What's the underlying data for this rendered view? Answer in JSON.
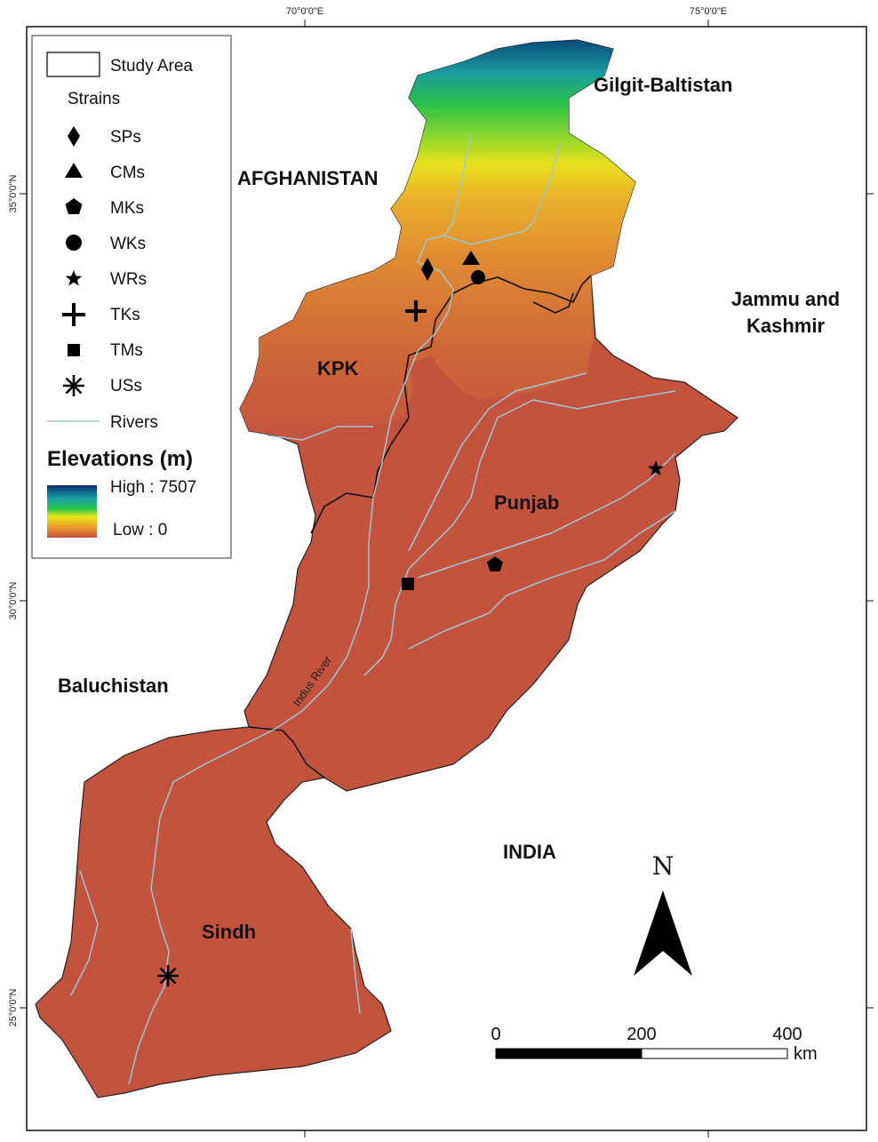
{
  "graticule": {
    "lon_labels": [
      "70°0'0\"E",
      "75°0'0\"E"
    ],
    "lat_labels": [
      "35°0'0\"N",
      "30°0'0\"N",
      "25°0'0\"N"
    ]
  },
  "regions": {
    "gilgit": "Gilgit-Baltistan",
    "afghanistan": "AFGHANISTAN",
    "jammu_1": "Jammu and",
    "jammu_2": "Kashmir",
    "kpk": "KPK",
    "punjab": "Punjab",
    "baluchistan": "Baluchistan",
    "india": "INDIA",
    "sindh": "Sindh"
  },
  "river_label": "Indus River",
  "legend": {
    "study_area": "Study Area",
    "strains_title": "Strains",
    "strains": [
      {
        "label": "SPs",
        "icon": "diamond-icon"
      },
      {
        "label": "CMs",
        "icon": "triangle-icon"
      },
      {
        "label": "MKs",
        "icon": "pentagon-icon"
      },
      {
        "label": "WKs",
        "icon": "circle-icon"
      },
      {
        "label": "WRs",
        "icon": "star-icon"
      },
      {
        "label": "TKs",
        "icon": "plus-icon"
      },
      {
        "label": "TMs",
        "icon": "square-icon"
      },
      {
        "label": "USs",
        "icon": "asterisk-icon"
      }
    ],
    "rivers": "Rivers",
    "elevation_title": "Elevations (m)",
    "high": "High : 7507",
    "low": "Low : 0"
  },
  "north": "N",
  "scale": {
    "tick0": "0",
    "tick1": "200",
    "tick2": "400",
    "unit": "km"
  },
  "colors": {
    "lowland": "#c4533e",
    "river": "#9fc7d2",
    "high": "#0a3d7a",
    "mid": "#1fb54a",
    "yellow": "#e8e01c",
    "orange": "#e69a2e"
  }
}
